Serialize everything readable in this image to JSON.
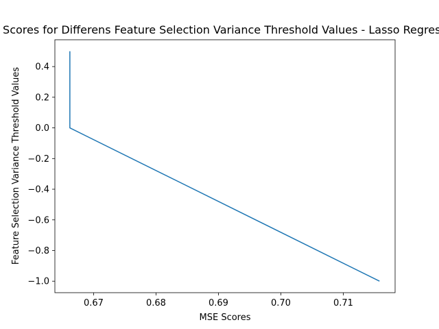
{
  "chart_data": {
    "type": "line",
    "title": "MSE Scores for Differens Feature Selection Variance Threshold Values - Lasso Regression",
    "xlabel": "MSE Scores",
    "ylabel": "Feature Selection Variance Threshold Values",
    "xlim": [
      0.6638,
      0.7183
    ],
    "ylim": [
      -1.075,
      0.575
    ],
    "x_ticks": [
      0.67,
      0.68,
      0.69,
      0.7,
      0.71
    ],
    "x_tick_labels": [
      "0.67",
      "0.68",
      "0.69",
      "0.70",
      "0.71"
    ],
    "y_ticks": [
      0.4,
      0.2,
      0.0,
      -0.2,
      -0.4,
      -0.6,
      -0.8,
      -1.0
    ],
    "y_tick_labels": [
      "0.4",
      "0.2",
      "0.0",
      "−0.2",
      "−0.4",
      "−0.6",
      "−0.8",
      "−1.0"
    ],
    "grid": false,
    "series": [
      {
        "color": "#1f77b4",
        "x": [
          0.6662,
          0.6662,
          0.6662,
          0.6662,
          0.7158
        ],
        "y": [
          0.5,
          0.3,
          0.1,
          0.0,
          -1.0
        ]
      }
    ]
  }
}
